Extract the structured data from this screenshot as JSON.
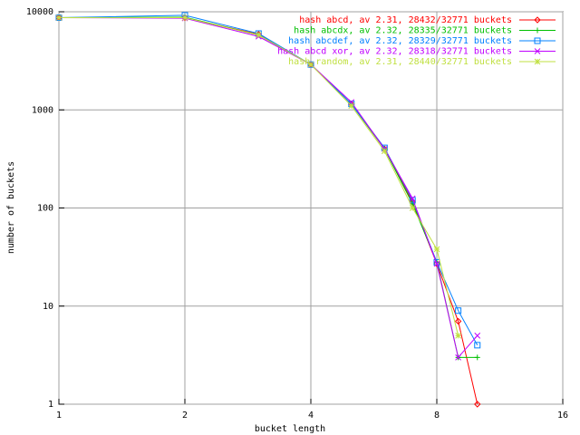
{
  "chart_data": {
    "type": "line",
    "x_label": "bucket length",
    "y_label": "number of buckets",
    "x": [
      1,
      2,
      3,
      4,
      5,
      6,
      7,
      8,
      9,
      10
    ],
    "xlim": [
      1,
      16
    ],
    "xticks": [
      1,
      2,
      4,
      8,
      16
    ],
    "x_log": true,
    "ylim": [
      1,
      10000
    ],
    "yticks": [
      1,
      10,
      100,
      1000,
      10000
    ],
    "y_log": true,
    "grid": true,
    "legend": "top-right",
    "series": [
      {
        "name": "hash abcd, av 2.31, 28432/32771 buckets",
        "color": "#ff0000",
        "marker": "diamond",
        "values": [
          8700,
          8700,
          5900,
          2900,
          1150,
          400,
          115,
          27,
          7,
          1
        ]
      },
      {
        "name": "hash abcdx, av 2.32, 28335/32771 buckets",
        "color": "#00c000",
        "marker": "plus",
        "values": [
          8700,
          8800,
          5800,
          2900,
          1150,
          400,
          110,
          28,
          3,
          3
        ]
      },
      {
        "name": "hash abcdef, av 2.32, 28329/32771 buckets",
        "color": "#0080ff",
        "marker": "square",
        "values": [
          8700,
          9200,
          6000,
          2900,
          1150,
          410,
          120,
          28,
          9,
          4
        ]
      },
      {
        "name": "hash abcd xor, av 2.32, 28318/32771 buckets",
        "color": "#c000ff",
        "marker": "cross",
        "values": [
          8700,
          8600,
          5600,
          2900,
          1200,
          400,
          125,
          27,
          3,
          5
        ]
      },
      {
        "name": "hash random, av 2.31, 28440/32771 buckets",
        "color": "#c0e040",
        "marker": "star",
        "values": [
          8700,
          8700,
          5800,
          2900,
          1100,
          380,
          100,
          38,
          5,
          null
        ]
      }
    ]
  }
}
